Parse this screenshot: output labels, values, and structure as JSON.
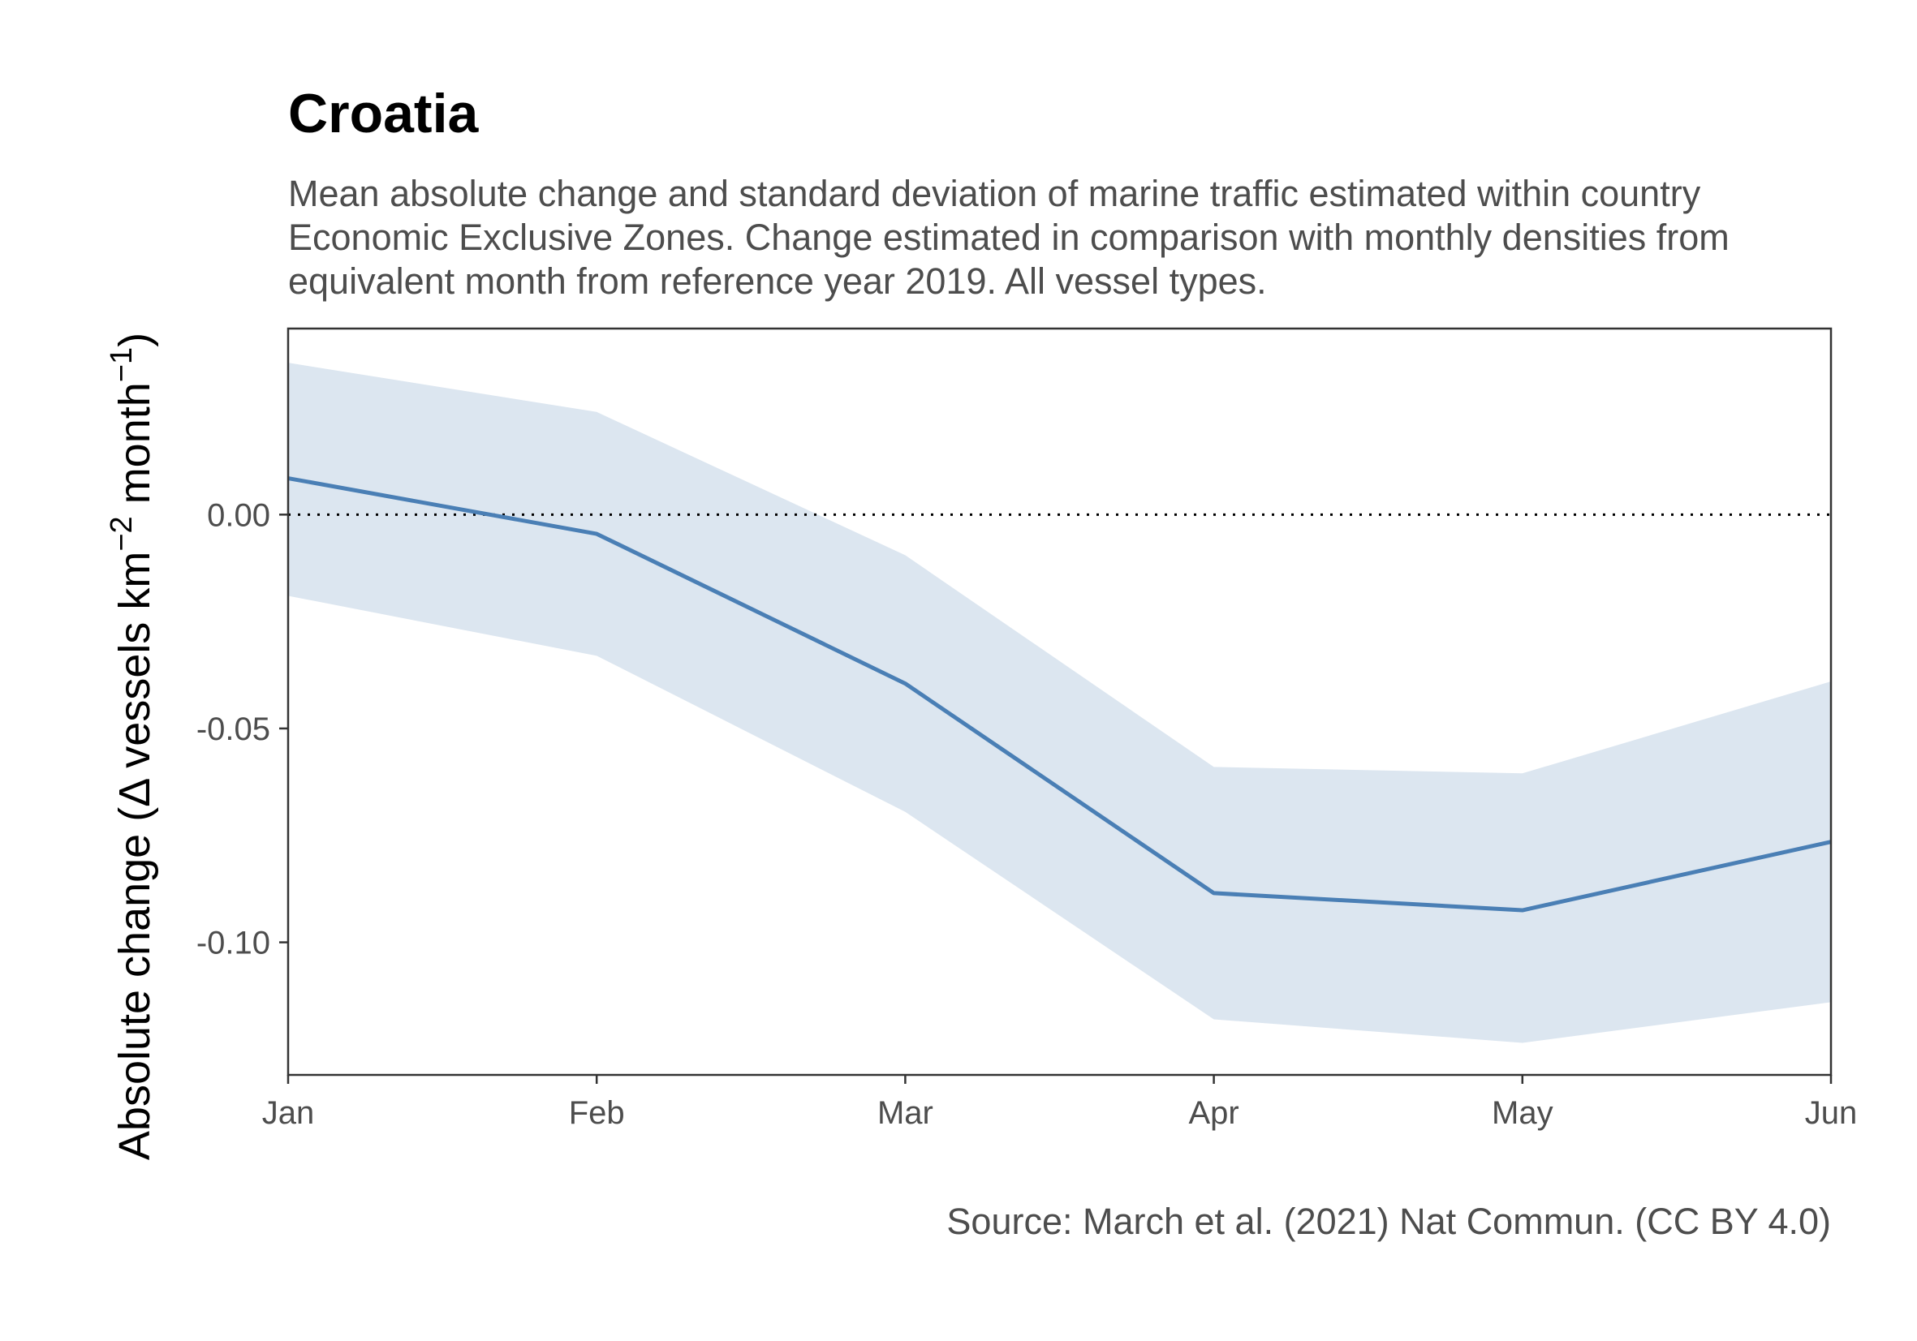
{
  "chart_data": {
    "type": "line",
    "title": "Croatia",
    "subtitle": "Mean absolute change and standard deviation of marine traffic estimated within country Economic Exclusive Zones. Change estimated in comparison with monthly densities from equivalent month from reference year 2019. All vessel types.",
    "caption": "Source: March et al. (2021) Nat Commun. (CC BY 4.0)",
    "xlabel": "",
    "ylabel": {
      "prefix": "Absolute change (",
      "delta": "Δ",
      "units_a": " vessels km",
      "exp1": "−2",
      "units_b": " month",
      "exp2": "−1",
      "suffix": ")"
    },
    "categories": [
      "Jan",
      "Feb",
      "Mar",
      "Apr",
      "May",
      "Jun"
    ],
    "series": [
      {
        "values": [
          0.0085,
          -0.0045,
          -0.0395,
          -0.0885,
          -0.0925,
          -0.0765
        ],
        "lower": [
          -0.019,
          -0.033,
          -0.0695,
          -0.118,
          -0.1235,
          -0.114
        ],
        "upper": [
          0.0355,
          0.024,
          -0.0095,
          -0.059,
          -0.0605,
          -0.039
        ]
      }
    ],
    "yticks": [
      "0.00",
      "-0.05",
      "-0.10"
    ],
    "ytick_values": [
      0.0,
      -0.05,
      -0.1
    ],
    "ylim": [
      -0.131,
      0.0435
    ],
    "reference_line": 0,
    "colors": {
      "line": "#4a7fb5",
      "ribbon": "#dce6f0",
      "reference": "#000000",
      "axis": "#333333"
    },
    "grid": false,
    "legend": "none"
  }
}
